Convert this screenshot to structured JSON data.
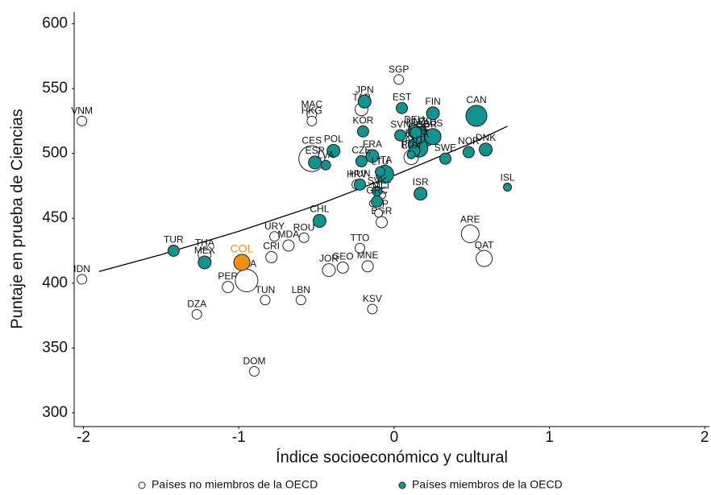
{
  "chart_data": {
    "type": "scatter",
    "x_label": "Índice socioeconómico y cultural",
    "y_label": "Puntaje en prueba de Ciencias",
    "xlim": [
      -2.06,
      2.03
    ],
    "ylim": [
      289.4,
      609
    ],
    "xticks": [
      -2,
      -1,
      0,
      1,
      2
    ],
    "yticks": [
      300,
      350,
      400,
      450,
      500,
      550,
      600
    ],
    "series": [
      {
        "name": "Países no miembros de la OECD",
        "color": "#ffffff",
        "labels": [
          "VNM",
          "IDN",
          "DZA",
          "DOM",
          "TUN",
          "LBN",
          "KSV",
          "THA",
          "PER",
          "BRA",
          "CRI",
          "URY",
          "MDA",
          "ROU",
          "JOR",
          "GEO",
          "MNE",
          "TTO",
          "ARE",
          "QAT",
          "SGP",
          "MAC",
          "HKG",
          "TAP",
          "CES",
          "HRV",
          "RUS",
          "BGR",
          "MLT",
          "CYP"
        ],
        "x": [
          -2.01,
          -2.01,
          -1.27,
          -0.9,
          -0.83,
          -0.6,
          -0.14,
          -1.22,
          -1.07,
          -0.95,
          -0.79,
          -0.77,
          -0.68,
          -0.58,
          -0.42,
          -0.33,
          -0.17,
          -0.22,
          0.49,
          0.58,
          0.03,
          -0.53,
          -0.53,
          -0.21,
          -0.53,
          -0.24,
          0.11,
          -0.08,
          -0.08,
          -0.1
        ],
        "values": [
          525,
          403,
          376,
          332,
          387,
          387,
          380,
          422,
          397,
          402,
          420,
          436,
          429,
          435,
          410,
          412,
          413,
          427,
          438,
          419,
          557,
          530,
          525,
          534,
          496,
          476,
          497,
          447,
          468,
          454
        ],
        "sizes": [
          6,
          6,
          6,
          6,
          6,
          6,
          6,
          8,
          7,
          14,
          7,
          6,
          7,
          6,
          8,
          7,
          7,
          6,
          11,
          10,
          6,
          6,
          6,
          8,
          16,
          6,
          9,
          7,
          5,
          5
        ]
      },
      {
        "name": "Países miembros de la OECD",
        "color": "#12938f",
        "labels": [
          "TUR",
          "MEX",
          "CHL",
          "ISL",
          "ISR",
          "NOR",
          "DNK",
          "SWE",
          "CAN",
          "FIN",
          "EST",
          "JPN",
          "KOR",
          "FRA",
          "CZE",
          "POL",
          "ESP",
          "LVA",
          "ITA",
          "HUN",
          "LTU",
          "SVK",
          "GRC",
          "SVN",
          "DEU",
          "NZL",
          "GBR",
          "AUS",
          "USA",
          "BEL",
          "CHE",
          "NLD",
          "AUT",
          "LUX"
        ],
        "x": [
          -1.42,
          -1.22,
          -0.48,
          0.73,
          0.17,
          0.48,
          0.59,
          0.33,
          0.53,
          0.25,
          0.05,
          -0.19,
          -0.2,
          -0.14,
          -0.21,
          -0.39,
          -0.51,
          -0.44,
          -0.06,
          -0.22,
          -0.09,
          -0.11,
          -0.11,
          0.04,
          0.13,
          0.18,
          0.21,
          0.25,
          0.16,
          0.13,
          0.16,
          0.14,
          0.13,
          0.11
        ],
        "values": [
          425,
          416,
          448,
          474,
          469,
          501,
          503,
          496,
          529,
          531,
          535,
          540,
          517,
          498,
          494,
          502,
          493,
          491,
          484,
          476,
          486,
          471,
          463,
          514,
          517,
          517,
          512,
          513,
          504,
          507,
          512,
          516,
          502,
          499
        ],
        "sizes": [
          7,
          8,
          8,
          5,
          8,
          7,
          8,
          7,
          13,
          8,
          7,
          8,
          7,
          8,
          7,
          8,
          8,
          6,
          11,
          7,
          6,
          6,
          7,
          7,
          8,
          6,
          10,
          10,
          11,
          7,
          7,
          7,
          7,
          5
        ]
      },
      {
        "color": "#f0900f",
        "labels": [
          "COL"
        ],
        "x": [
          -0.98
        ],
        "values": [
          416
        ],
        "sizes": [
          10
        ]
      }
    ],
    "trend": {
      "x": [
        -1.9,
        -1.5,
        -1,
        -0.5,
        0,
        0.5,
        0.73
      ],
      "y": [
        409,
        422,
        440,
        460,
        483,
        508,
        521
      ]
    }
  }
}
